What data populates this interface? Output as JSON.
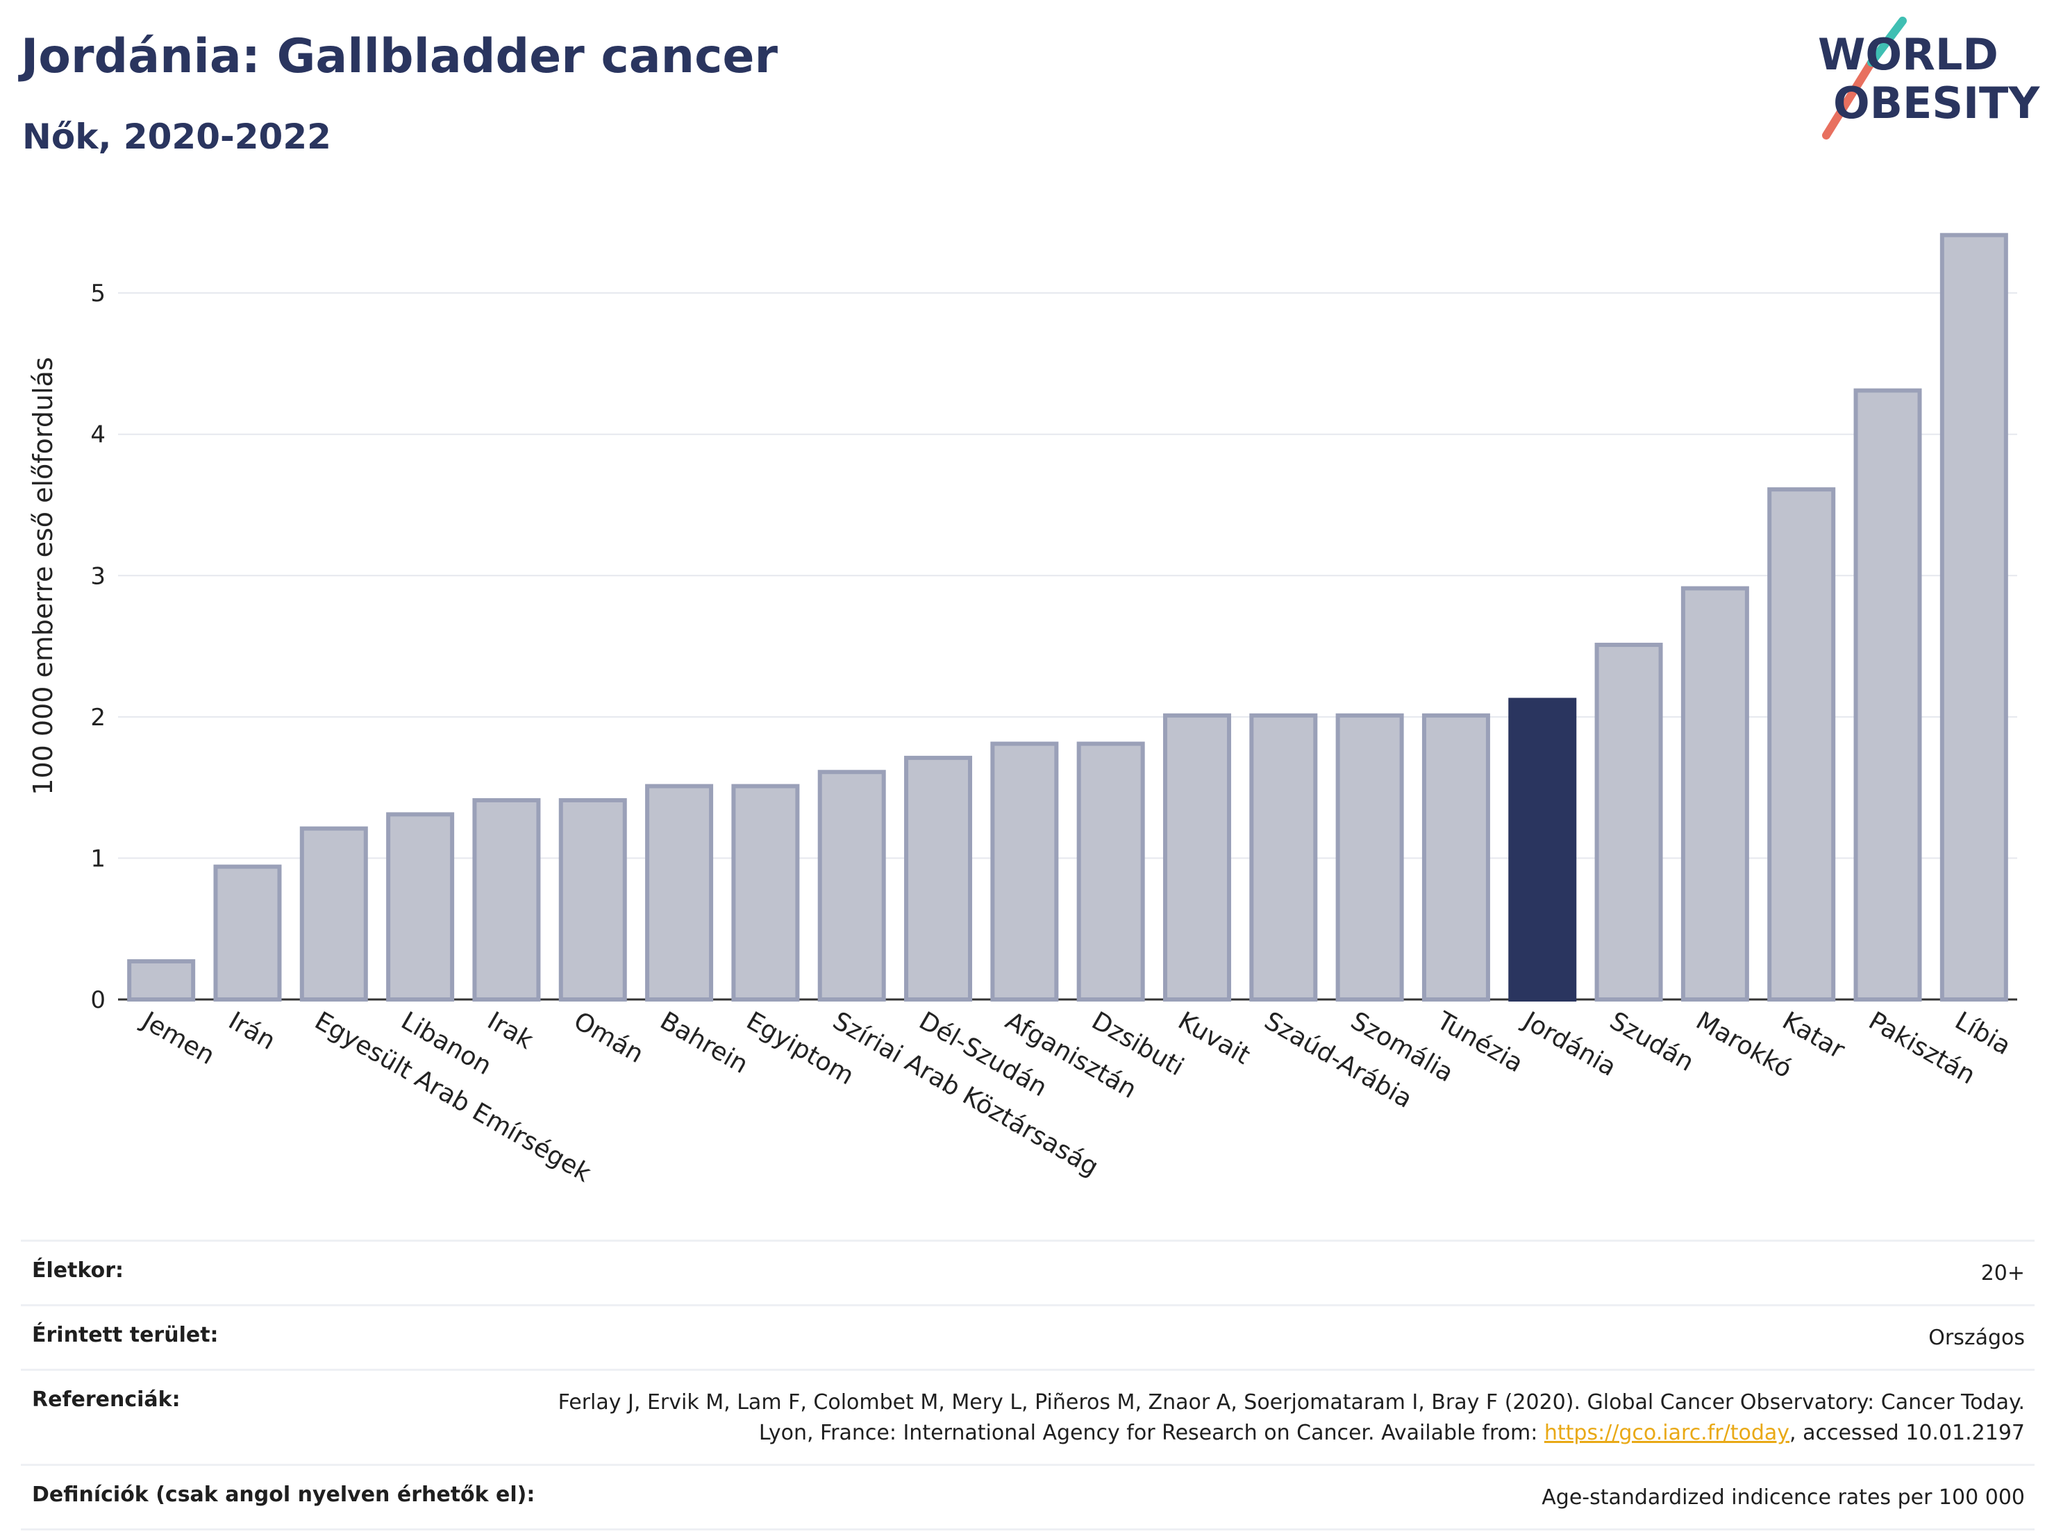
{
  "header": {
    "title": "Jordánia: Gallbladder cancer",
    "subtitle": "Nők, 2020-2022"
  },
  "logo": {
    "line1": "WORLD",
    "line2": "OBESITY",
    "colors": {
      "text": "#2a355f",
      "slash_top": "#3fbfb3",
      "slash_bottom": "#e8705f"
    }
  },
  "chart_data": {
    "type": "bar",
    "title": "Jordánia: Gallbladder cancer",
    "subtitle": "Nők, 2020-2022",
    "ylabel": "100 000 emberre eső előfordulás",
    "xlabel": "",
    "ylim": [
      0,
      5.6
    ],
    "yticks": [
      0,
      1,
      2,
      3,
      4,
      5
    ],
    "grid": true,
    "highlight": "Jordánia",
    "colors": {
      "bar": "#bfc2ce",
      "bar_border": "#9aa0b8",
      "highlight": "#2a355f",
      "grid": "#e6e8ee"
    },
    "categories": [
      "Jemen",
      "Irán",
      "Egyesült Arab Emírségek",
      "Libanon",
      "Irak",
      "Omán",
      "Bahrein",
      "Egyiptom",
      "Szíriai Arab Köztársaság",
      "Dél-Szudán",
      "Afganisztán",
      "Dzsibuti",
      "Kuvait",
      "Szaúd-Arábia",
      "Szomália",
      "Tunézia",
      "Jordánia",
      "Szudán",
      "Marokkó",
      "Katar",
      "Pakisztán",
      "Líbia"
    ],
    "values": [
      0.27,
      0.94,
      1.21,
      1.31,
      1.41,
      1.41,
      1.51,
      1.51,
      1.61,
      1.71,
      1.81,
      1.81,
      2.01,
      2.01,
      2.01,
      2.01,
      2.12,
      2.51,
      2.91,
      3.61,
      4.31,
      5.41
    ]
  },
  "info": {
    "age_label": "Életkor:",
    "age_value": "20+",
    "area_label": "Érintett terület:",
    "area_value": "Országos",
    "ref_label": "Referenciák:",
    "ref_text_1": "Ferlay J, Ervik M, Lam F, Colombet M, Mery L, Piñeros M, Znaor A, Soerjomataram I, Bray F (2020). Global Cancer Observatory: Cancer Today. Lyon, France: International Agency for Research on Cancer. Available from: ",
    "ref_link": "https://gco.iarc.fr/today",
    "ref_text_2": ", accessed 10.01.2197",
    "def_label": "Definíciók (csak angol nyelven érhetők el):",
    "def_value": "Age-standardized indicence rates per 100 000"
  }
}
